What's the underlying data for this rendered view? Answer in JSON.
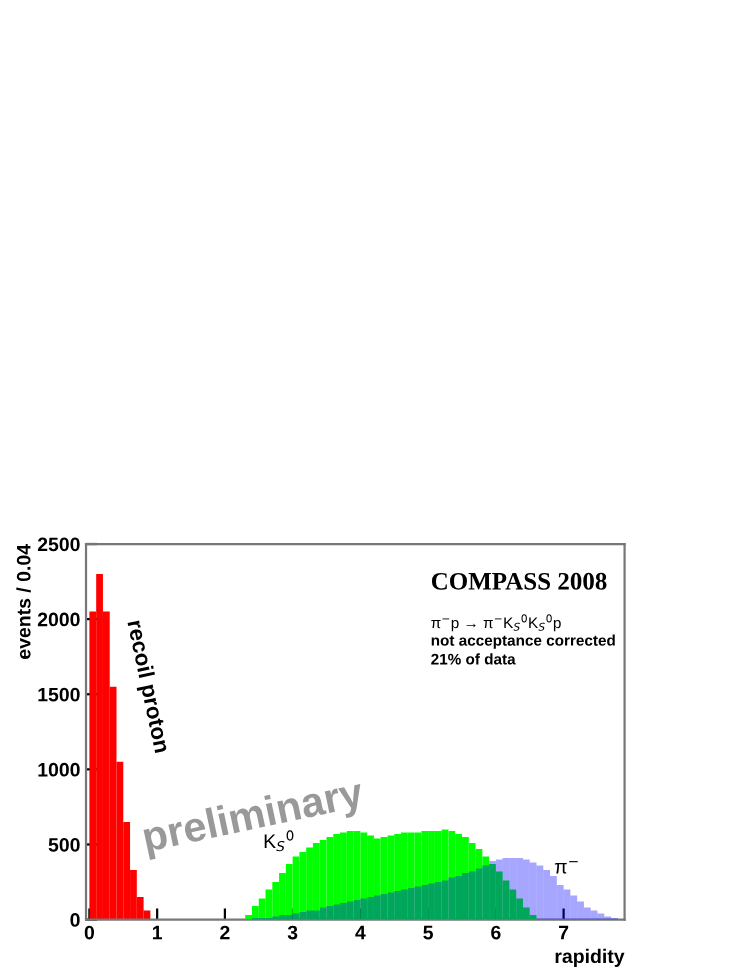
{
  "chart_data": {
    "type": "histogram",
    "xlabel": "rapidity",
    "ylabel": "events / 0.04",
    "xlim": [
      -0.05,
      7.9
    ],
    "ylim": [
      0,
      2500
    ],
    "xticks": [
      0,
      1,
      2,
      3,
      4,
      5,
      6,
      7
    ],
    "yticks": [
      0,
      500,
      1000,
      1500,
      2000,
      2500
    ],
    "grid": false,
    "legend": false,
    "bins": [
      0.0,
      0.1,
      0.2,
      0.3,
      0.4,
      0.5,
      0.6,
      0.7,
      0.8,
      0.9,
      1.0,
      1.1,
      1.2,
      1.3,
      1.4,
      1.5,
      1.6,
      1.7,
      1.8,
      1.9,
      2.0,
      2.1,
      2.2,
      2.3,
      2.4,
      2.5,
      2.6,
      2.7,
      2.8,
      2.9,
      3.0,
      3.1,
      3.2,
      3.3,
      3.4,
      3.5,
      3.6,
      3.7,
      3.8,
      3.9,
      4.0,
      4.1,
      4.2,
      4.3,
      4.4,
      4.5,
      4.6,
      4.7,
      4.8,
      4.9,
      5.0,
      5.1,
      5.2,
      5.3,
      5.4,
      5.5,
      5.6,
      5.7,
      5.8,
      5.9,
      6.0,
      6.1,
      6.2,
      6.3,
      6.4,
      6.5,
      6.6,
      6.7,
      6.8,
      6.9,
      7.0,
      7.1,
      7.2,
      7.3,
      7.4,
      7.5,
      7.6,
      7.7,
      7.8,
      7.9
    ],
    "series": [
      {
        "name": "recoil proton",
        "color": "#ff0000",
        "values": [
          2050,
          2300,
          2050,
          1550,
          1050,
          650,
          330,
          150,
          60,
          null,
          null,
          null,
          null,
          null,
          null,
          null,
          null,
          null,
          null,
          null,
          null,
          null,
          null,
          null,
          null,
          null,
          null,
          null,
          null,
          null,
          null,
          null,
          null,
          null,
          null,
          null,
          null,
          null,
          null,
          null,
          null,
          null,
          null,
          null,
          null,
          null,
          null,
          null,
          null,
          null,
          null,
          null,
          null,
          null,
          null,
          null,
          null,
          null,
          null,
          null,
          null,
          null,
          null,
          null,
          null,
          null,
          null,
          null,
          null,
          null,
          null,
          null,
          null,
          null,
          null,
          null,
          null,
          null,
          null
        ]
      },
      {
        "name": "K$_{S}$$^{0}$",
        "color": "#00ff00",
        "values": [
          null,
          null,
          null,
          null,
          null,
          null,
          null,
          null,
          null,
          null,
          null,
          null,
          null,
          null,
          null,
          null,
          null,
          null,
          null,
          null,
          null,
          null,
          null,
          30,
          90,
          140,
          200,
          250,
          310,
          370,
          420,
          450,
          480,
          510,
          530,
          550,
          570,
          580,
          590,
          590,
          580,
          560,
          540,
          550,
          560,
          570,
          580,
          580,
          580,
          590,
          590,
          590,
          600,
          590,
          570,
          550,
          510,
          470,
          420,
          370,
          320,
          260,
          200,
          140,
          80,
          30,
          null,
          null,
          null,
          null,
          null,
          null,
          null,
          null,
          null,
          null,
          null,
          null,
          null
        ]
      },
      {
        "name": "π$^{−}$",
        "color": "#0000ff",
        "values": [
          null,
          null,
          null,
          null,
          null,
          null,
          null,
          null,
          null,
          null,
          null,
          null,
          null,
          null,
          null,
          null,
          null,
          null,
          null,
          null,
          null,
          null,
          null,
          null,
          10,
          10,
          10,
          20,
          30,
          30,
          40,
          50,
          60,
          60,
          80,
          90,
          100,
          110,
          120,
          130,
          140,
          150,
          160,
          170,
          180,
          190,
          200,
          210,
          220,
          230,
          240,
          250,
          260,
          280,
          290,
          310,
          320,
          340,
          360,
          390,
          400,
          410,
          410,
          410,
          400,
          380,
          360,
          330,
          290,
          230,
          200,
          160,
          120,
          80,
          60,
          40,
          20,
          10,
          null
        ]
      }
    ],
    "annotations": [
      "COMPASS 2008",
      "π$^{−}$p → π$^{−}$K$_{S}$$^{0}$K$_{S}$$^{0}$p",
      "not acceptance corrected",
      "21% of data",
      "preliminary"
    ]
  }
}
